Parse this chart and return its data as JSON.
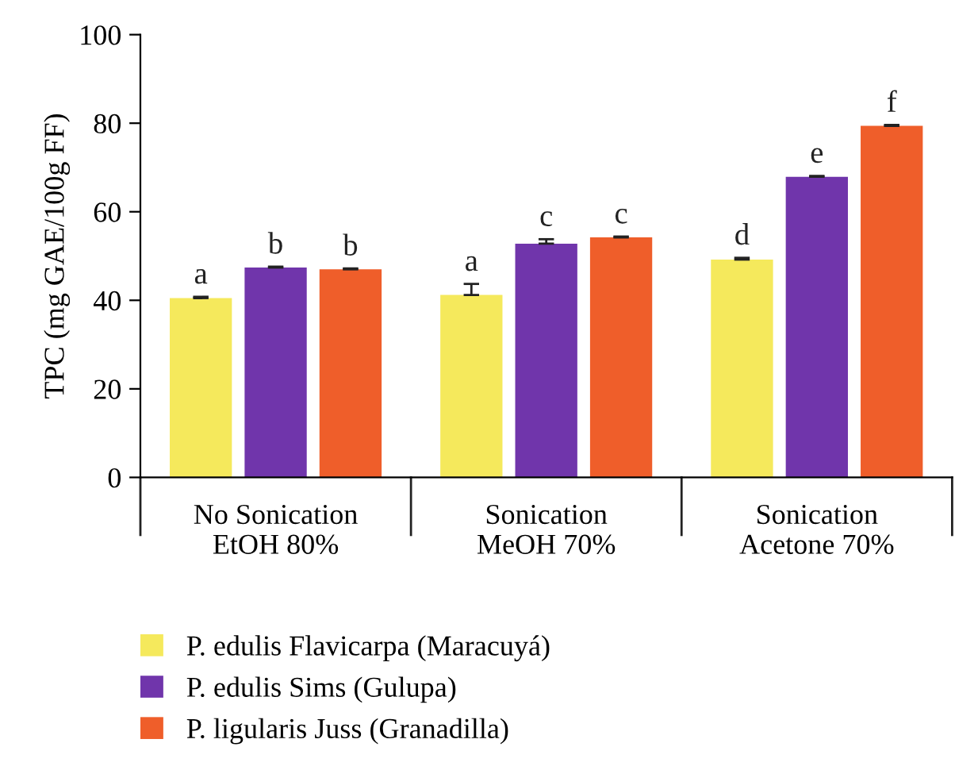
{
  "chart_data": {
    "type": "bar",
    "ylabel": "TPC (mg GAE/100g FF)",
    "categories": [
      "No Sonication\nEtOH 80%",
      "Sonication\nMeOH 70%",
      "Sonication\nAcetone 70%"
    ],
    "series": [
      {
        "name": "P. edulis Flavicarpa (Maracuyá)",
        "color": "#f5e95c",
        "values": [
          40.5,
          41.2,
          49.2
        ],
        "errors": [
          0.3,
          2.5,
          0.4
        ],
        "value_labels": [
          "a",
          "a",
          "d"
        ]
      },
      {
        "name": "P. edulis Sims (Gulupa)",
        "color": "#7035ab",
        "values": [
          47.4,
          52.8,
          67.9
        ],
        "errors": [
          0.2,
          1.0,
          0.2
        ],
        "value_labels": [
          "b",
          "c",
          "e"
        ]
      },
      {
        "name": "P. ligularis Juss (Granadilla)",
        "color": "#ef5e2a",
        "values": [
          47.0,
          54.2,
          79.4
        ],
        "errors": [
          0.2,
          0.2,
          0.2
        ],
        "value_labels": [
          "b",
          "c",
          "f"
        ]
      }
    ],
    "ylim": [
      0,
      100
    ],
    "yticks": [
      0,
      20,
      40,
      60,
      80,
      100
    ],
    "grid": false,
    "legend": "bottom left"
  }
}
